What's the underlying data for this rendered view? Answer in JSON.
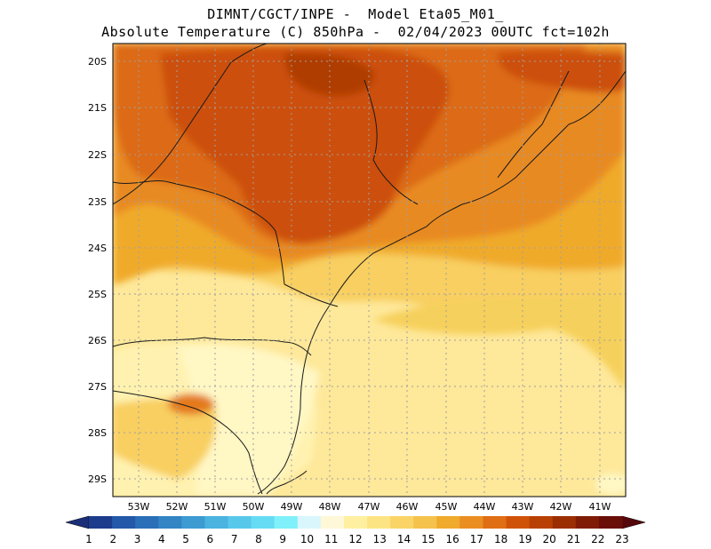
{
  "header": {
    "line1": "DIMNT/CGCT/INPE -  Model Eta05_M01_",
    "line2": "Absolute Temperature (C) 850hPa -  02/04/2023 00UTC fct=102h"
  },
  "map": {
    "lat_labels": [
      "20S",
      "21S",
      "22S",
      "23S",
      "24S",
      "25S",
      "26S",
      "27S",
      "28S",
      "29S"
    ],
    "lon_labels": [
      "53W",
      "52W",
      "51W",
      "50W",
      "49W",
      "48W",
      "47W",
      "46W",
      "45W",
      "44W",
      "43W",
      "42W",
      "41W"
    ],
    "lat_range": [
      -29.4,
      -19.9
    ],
    "lon_range": [
      -53.8,
      -40.5
    ],
    "grid": "dotted"
  },
  "colorbar": {
    "labels": [
      "1",
      "2",
      "3",
      "4",
      "5",
      "6",
      "7",
      "8",
      "9",
      "10",
      "11",
      "12",
      "13",
      "14",
      "15",
      "16",
      "17",
      "18",
      "19",
      "20",
      "21",
      "22",
      "23"
    ],
    "colors": [
      "#1e3c8c",
      "#2458a8",
      "#2b6fb8",
      "#3385c4",
      "#3d9bd2",
      "#4ab3e0",
      "#58c8ea",
      "#66dcf4",
      "#80f0fa",
      "#d8f6fb",
      "#fff8d8",
      "#fef0a0",
      "#fde482",
      "#fad466",
      "#f5c24c",
      "#f0aa2c",
      "#ea8e22",
      "#e06e14",
      "#d05208",
      "#b84004",
      "#9c2e04",
      "#801c06",
      "#6a0e08"
    ],
    "left_arrow_color": "#1a2f78",
    "right_arrow_color": "#55080c"
  }
}
